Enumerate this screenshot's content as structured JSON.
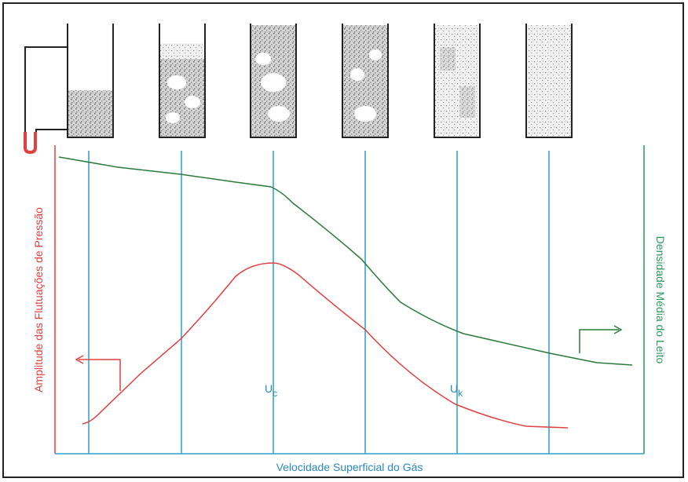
{
  "axes": {
    "x_label": "Velocidade Superficial do Gás",
    "left_label": "Amplitude das Flutuações de Pressão",
    "right_label": "Densidade Média do Leito"
  },
  "markers": [
    {
      "label": "U",
      "subscript": "c"
    },
    {
      "label": "U",
      "subscript": "k"
    }
  ]
}
